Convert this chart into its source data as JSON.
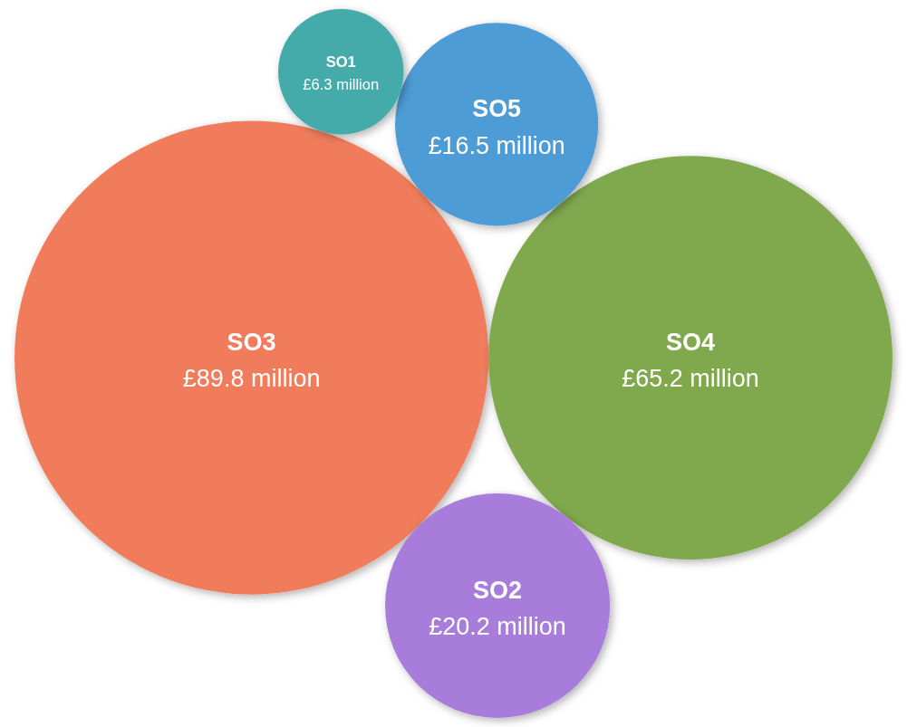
{
  "chart_data": {
    "type": "other",
    "categories": [
      "SO3",
      "SO4",
      "SO2",
      "SO5",
      "SO1"
    ],
    "values": [
      89.8,
      65.2,
      20.2,
      16.5,
      6.3
    ],
    "value_labels": [
      "£89.8 million",
      "£65.2 million",
      "£20.2 million",
      "£16.5 million",
      "£6.3 million"
    ],
    "colors": [
      "#f07c5c",
      "#80a94d",
      "#a87bdb",
      "#4e9cd6",
      "#44aaaa"
    ]
  }
}
